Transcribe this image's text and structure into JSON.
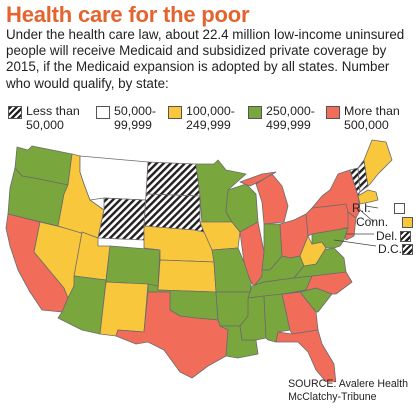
{
  "title": "Health care for the poor",
  "intro": "Under the health care law, about 22.4 million low-income uninsured people will receive Medicaid and subsidized private coverage by 2015, if the Medicaid expansion is adopted by all states. Number who would qualify, by state:",
  "colors": {
    "lt50k": "hatch-black",
    "c50_99": "#ffffff",
    "c100_249": "#f9c73c",
    "c250_499": "#7aa63e",
    "c500plus": "#f26c5a",
    "outline": "#6b6b6b"
  },
  "legend": [
    {
      "key": "lt50k",
      "label_line1": "Less than",
      "label_line2": "50,000"
    },
    {
      "key": "c50_99",
      "label_line1": "50,000-",
      "label_line2": "99,999"
    },
    {
      "key": "c100_249",
      "label_line1": "100,000-",
      "label_line2": "249,999"
    },
    {
      "key": "c250_499",
      "label_line1": "250,000-",
      "label_line2": "499,999"
    },
    {
      "key": "c500plus",
      "label_line1": "More than",
      "label_line2": "500,000"
    }
  ],
  "small_states": [
    {
      "label": "R.I.",
      "key": "c50_99"
    },
    {
      "label": "Conn.",
      "key": "c100_249"
    },
    {
      "label": "Del.",
      "key": "lt50k"
    },
    {
      "label": "D.C.",
      "key": "lt50k"
    }
  ],
  "states": {
    "WA": "c250_499",
    "OR": "c250_499",
    "CA": "c500plus",
    "NV": "c100_249",
    "ID": "c100_249",
    "MT": "c50_99",
    "WY": "lt50k",
    "UT": "c100_249",
    "AZ": "c250_499",
    "CO": "c250_499",
    "NM": "c100_249",
    "ND": "lt50k",
    "SD": "lt50k",
    "NE": "c100_249",
    "KS": "c100_249",
    "OK": "c250_499",
    "TX": "c500plus",
    "MN": "c250_499",
    "IA": "c100_249",
    "MO": "c250_499",
    "AR": "c250_499",
    "LA": "c250_499",
    "WI": "c250_499",
    "IL": "c500plus",
    "MI": "c500plus",
    "IN": "c250_499",
    "OH": "c500plus",
    "KY": "c250_499",
    "TN": "c250_499",
    "MS": "c250_499",
    "AL": "c250_499",
    "GA": "c500plus",
    "FL": "c500plus",
    "SC": "c250_499",
    "NC": "c500plus",
    "VA": "c250_499",
    "WV": "c100_249",
    "PA": "c500plus",
    "NY": "c500plus",
    "NJ": "c500plus",
    "MD": "c250_499",
    "VT": "lt50k",
    "NH": "lt50k",
    "ME": "c100_249",
    "MA": "c100_249"
  },
  "source_line1": "SOURCE: Avalere Health",
  "source_line2": "McClatchy-Tribune"
}
